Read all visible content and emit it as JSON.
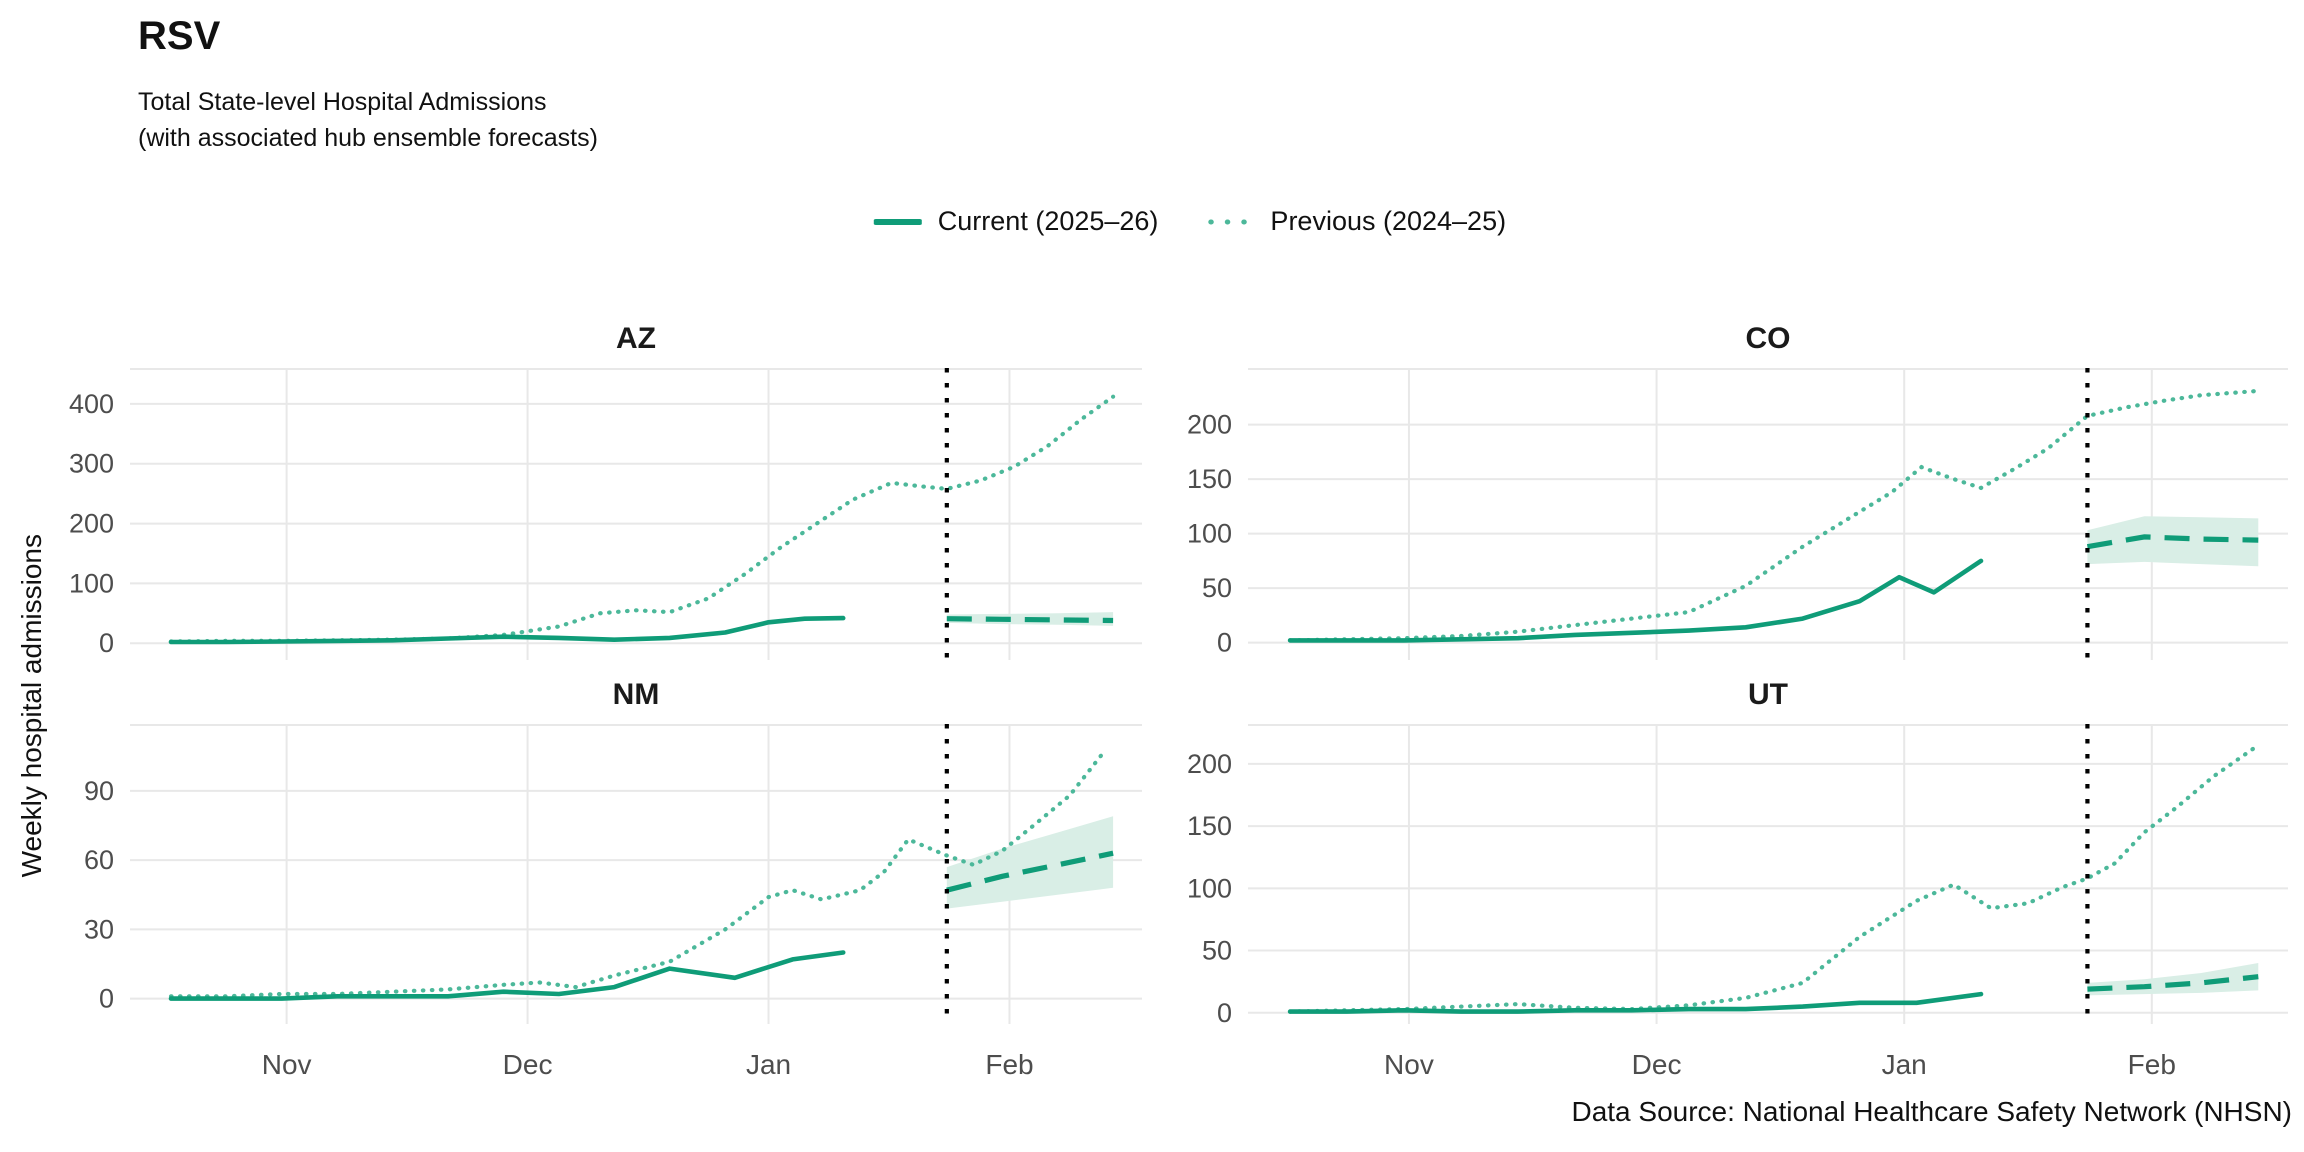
{
  "title": "RSV",
  "subtitle_line1": "Total State-level Hospital Admissions",
  "subtitle_line2": "(with associated hub ensemble forecasts)",
  "y_axis_label": "Weekly hospital admissions",
  "footer": "Data Source: National Healthcare Safety Network (NHSN)",
  "legend": [
    {
      "label": "Current (2025–26)",
      "style": "solid"
    },
    {
      "label": "Previous (2024–25)",
      "style": "dotted"
    }
  ],
  "colors": {
    "current": "#0f9c78",
    "previous": "#4cb89a",
    "forecast_ribbon": "#d9eee6",
    "reference_line": "#000000",
    "gridline": "#e8e8e8",
    "axis_text": "#4d4d4d"
  },
  "chart_data": [
    {
      "type": "line",
      "state": "AZ",
      "x_unit": "months, Nov = 0 (weekly observations, mid-Oct to mid-Feb)",
      "ylim": [
        -28,
        460
      ],
      "yticks": [
        0,
        100,
        200,
        300,
        400
      ],
      "x_ticks": [
        {
          "x": 0,
          "label": "Nov"
        },
        {
          "x": 1,
          "label": "Dec"
        },
        {
          "x": 2,
          "label": "Jan"
        },
        {
          "x": 3,
          "label": "Feb"
        }
      ],
      "forecast_start_x": 2.74,
      "series": {
        "previous": {
          "name": "Previous (2024–25)",
          "x": [
            -0.48,
            -0.25,
            -0.02,
            0.21,
            0.44,
            0.67,
            0.9,
            1.13,
            1.3,
            1.45,
            1.59,
            1.75,
            1.9,
            2.05,
            2.2,
            2.35,
            2.51,
            2.64,
            2.74,
            2.88,
            3.02,
            3.16,
            3.3,
            3.43
          ],
          "y": [
            3,
            4,
            4,
            5,
            6,
            8,
            14,
            28,
            50,
            55,
            52,
            75,
            115,
            160,
            200,
            240,
            268,
            262,
            258,
            272,
            295,
            330,
            375,
            412
          ]
        },
        "current": {
          "name": "Current (2025–26)",
          "x": [
            -0.48,
            -0.25,
            -0.02,
            0.21,
            0.44,
            0.67,
            0.9,
            1.13,
            1.36,
            1.59,
            1.82,
            2.0,
            2.15,
            2.31
          ],
          "y": [
            2,
            2,
            3,
            4,
            5,
            8,
            11,
            9,
            6,
            9,
            18,
            35,
            41,
            42
          ]
        },
        "forecast": {
          "name": "Hub ensemble forecast",
          "x": [
            2.74,
            2.97,
            3.2,
            3.43
          ],
          "y": [
            41,
            40,
            39,
            38
          ],
          "lower": [
            34,
            32,
            31,
            29
          ],
          "upper": [
            48,
            49,
            50,
            52
          ]
        }
      }
    },
    {
      "type": "line",
      "state": "CO",
      "x_unit": "months, Nov = 0 (weekly observations, mid-Oct to mid-Feb)",
      "ylim": [
        -16,
        252
      ],
      "yticks": [
        0,
        50,
        100,
        150,
        200
      ],
      "x_ticks": [
        {
          "x": 0,
          "label": "Nov"
        },
        {
          "x": 1,
          "label": "Dec"
        },
        {
          "x": 2,
          "label": "Jan"
        },
        {
          "x": 3,
          "label": "Feb"
        }
      ],
      "forecast_start_x": 2.74,
      "series": {
        "previous": {
          "name": "Previous (2024–25)",
          "x": [
            -0.48,
            -0.25,
            -0.02,
            0.21,
            0.44,
            0.67,
            0.9,
            1.13,
            1.36,
            1.59,
            1.82,
            1.95,
            2.07,
            2.2,
            2.31,
            2.45,
            2.58,
            2.74,
            2.9,
            3.05,
            3.2,
            3.43
          ],
          "y": [
            2,
            3,
            4,
            6,
            10,
            16,
            22,
            28,
            52,
            88,
            120,
            138,
            161,
            150,
            142,
            160,
            178,
            208,
            216,
            222,
            227,
            231
          ]
        },
        "current": {
          "name": "Current (2025–26)",
          "x": [
            -0.48,
            -0.25,
            -0.02,
            0.21,
            0.44,
            0.67,
            0.9,
            1.13,
            1.36,
            1.59,
            1.82,
            1.98,
            2.12,
            2.31
          ],
          "y": [
            2,
            2,
            2,
            3,
            4,
            7,
            9,
            11,
            14,
            22,
            38,
            60,
            46,
            75
          ]
        },
        "forecast": {
          "name": "Hub ensemble forecast",
          "x": [
            2.74,
            2.97,
            3.2,
            3.43
          ],
          "y": [
            88,
            97,
            95,
            94
          ],
          "lower": [
            72,
            74,
            72,
            70
          ],
          "upper": [
            103,
            116,
            115,
            114
          ]
        }
      }
    },
    {
      "type": "line",
      "state": "NM",
      "x_unit": "months, Nov = 0 (weekly observations, mid-Oct to mid-Feb)",
      "ylim": [
        -11,
        119
      ],
      "yticks": [
        0,
        30,
        60,
        90
      ],
      "x_ticks": [
        {
          "x": 0,
          "label": "Nov"
        },
        {
          "x": 1,
          "label": "Dec"
        },
        {
          "x": 2,
          "label": "Jan"
        },
        {
          "x": 3,
          "label": "Feb"
        }
      ],
      "forecast_start_x": 2.74,
      "series": {
        "previous": {
          "name": "Previous (2024–25)",
          "x": [
            -0.48,
            -0.25,
            -0.02,
            0.21,
            0.44,
            0.67,
            0.9,
            1.05,
            1.2,
            1.36,
            1.59,
            1.82,
            2.0,
            2.1,
            2.22,
            2.38,
            2.48,
            2.58,
            2.74,
            2.85,
            2.97,
            3.1,
            3.25,
            3.4
          ],
          "y": [
            1,
            1,
            2,
            2,
            3,
            4,
            6,
            7,
            5,
            10,
            16,
            30,
            44,
            47,
            43,
            47,
            55,
            69,
            62,
            58,
            64,
            75,
            88,
            108
          ]
        },
        "current": {
          "name": "Current (2025–26)",
          "x": [
            -0.48,
            -0.25,
            -0.02,
            0.21,
            0.44,
            0.67,
            0.9,
            1.13,
            1.36,
            1.59,
            1.86,
            2.1,
            2.31
          ],
          "y": [
            0,
            0,
            0,
            1,
            1,
            1,
            3,
            2,
            5,
            13,
            9,
            17,
            20
          ]
        },
        "forecast": {
          "name": "Hub ensemble forecast",
          "x": [
            2.74,
            2.97,
            3.2,
            3.43
          ],
          "y": [
            47,
            53,
            58,
            63
          ],
          "lower": [
            39,
            42,
            45,
            48
          ],
          "upper": [
            57,
            65,
            72,
            79
          ]
        }
      }
    },
    {
      "type": "line",
      "state": "UT",
      "x_unit": "months, Nov = 0 (weekly observations, mid-Oct to mid-Feb)",
      "ylim": [
        -9,
        232
      ],
      "yticks": [
        0,
        50,
        100,
        150,
        200
      ],
      "x_ticks": [
        {
          "x": 0,
          "label": "Nov"
        },
        {
          "x": 1,
          "label": "Dec"
        },
        {
          "x": 2,
          "label": "Jan"
        },
        {
          "x": 3,
          "label": "Feb"
        }
      ],
      "forecast_start_x": 2.74,
      "series": {
        "previous": {
          "name": "Previous (2024–25)",
          "x": [
            -0.48,
            -0.25,
            -0.02,
            0.21,
            0.44,
            0.67,
            0.9,
            1.13,
            1.36,
            1.59,
            1.82,
            2.05,
            2.2,
            2.35,
            2.5,
            2.64,
            2.74,
            2.85,
            2.97,
            3.1,
            3.25,
            3.43
          ],
          "y": [
            1,
            2,
            3,
            5,
            7,
            4,
            3,
            6,
            12,
            24,
            61,
            90,
            103,
            84,
            88,
            101,
            108,
            120,
            145,
            165,
            190,
            215
          ]
        },
        "current": {
          "name": "Current (2025–26)",
          "x": [
            -0.48,
            -0.25,
            -0.02,
            0.21,
            0.44,
            0.67,
            0.9,
            1.13,
            1.36,
            1.59,
            1.82,
            2.05,
            2.31
          ],
          "y": [
            1,
            1,
            2,
            1,
            1,
            2,
            2,
            3,
            3,
            5,
            8,
            8,
            15
          ]
        },
        "forecast": {
          "name": "Hub ensemble forecast",
          "x": [
            2.74,
            2.97,
            3.2,
            3.43
          ],
          "y": [
            19,
            21,
            24,
            29
          ],
          "lower": [
            14,
            15,
            16,
            18
          ],
          "upper": [
            24,
            27,
            32,
            40
          ]
        }
      }
    }
  ]
}
